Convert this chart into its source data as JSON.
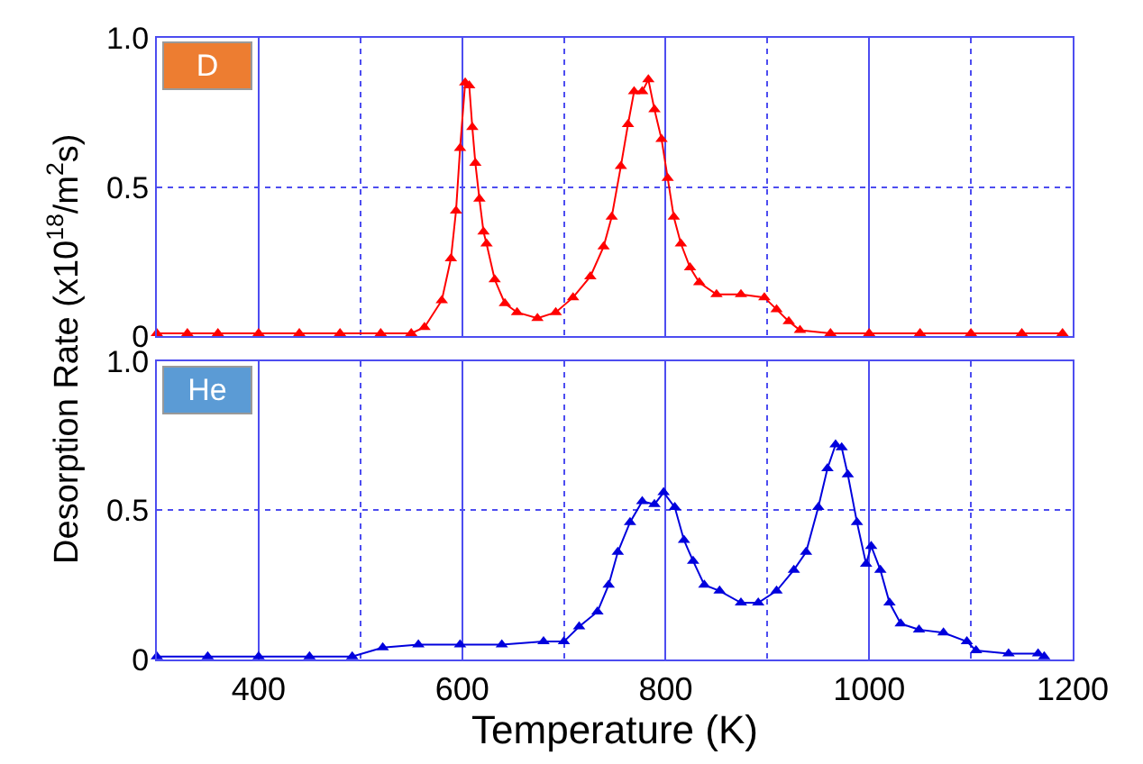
{
  "chart_data": [
    {
      "type": "line",
      "ylabel": "Desorption Rate (x10$^{18}$/m$^{2}$s)",
      "xlim": [
        300,
        1200
      ],
      "ylim": [
        0,
        1.0
      ],
      "yticks": [
        0,
        0.5,
        {
          "value": 1.0,
          "label": "1.0"
        }
      ],
      "xticks": [
        400,
        {
          "value": 500,
          "label": null
        },
        600,
        {
          "value": 700,
          "label": null
        },
        800,
        {
          "value": 900,
          "label": null
        },
        1000,
        {
          "value": 1100,
          "label": null
        },
        1200
      ],
      "tick_labels": "y",
      "grid": true,
      "marker": "triangle",
      "line_style": "solid",
      "series": [
        {
          "name": "D",
          "color": "#ff0000",
          "x": [
            300,
            330,
            360,
            400,
            440,
            480,
            520,
            550,
            563,
            580,
            589,
            594,
            598,
            603,
            607,
            610,
            613,
            617,
            621,
            624,
            632,
            642,
            654,
            674,
            692,
            709,
            726,
            739,
            747,
            756,
            763,
            769,
            777,
            783,
            789,
            796,
            802,
            808,
            815,
            824,
            833,
            850,
            874,
            897,
            909,
            921,
            932,
            962,
            1000,
            1050,
            1100,
            1150,
            1190
          ],
          "values": [
            0.01,
            0.01,
            0.01,
            0.01,
            0.01,
            0.01,
            0.01,
            0.01,
            0.03,
            0.12,
            0.26,
            0.42,
            0.63,
            0.85,
            0.84,
            0.7,
            0.58,
            0.46,
            0.35,
            0.31,
            0.19,
            0.11,
            0.08,
            0.06,
            0.08,
            0.13,
            0.2,
            0.3,
            0.4,
            0.57,
            0.71,
            0.82,
            0.82,
            0.86,
            0.76,
            0.66,
            0.53,
            0.4,
            0.31,
            0.23,
            0.18,
            0.14,
            0.14,
            0.13,
            0.09,
            0.05,
            0.02,
            0.01,
            0.01,
            0.01,
            0.01,
            0.01,
            0.01
          ]
        }
      ]
    },
    {
      "type": "line",
      "xlabel": "Temperature (K)",
      "xlim": [
        300,
        1200
      ],
      "ylim": [
        0,
        1.0
      ],
      "yticks": [
        0,
        0.5,
        {
          "value": 1.0,
          "label": "1.0"
        }
      ],
      "xticks": [
        400,
        {
          "value": 500,
          "label": null
        },
        600,
        {
          "value": 700,
          "label": null
        },
        800,
        {
          "value": 900,
          "label": null
        },
        1000,
        {
          "value": 1100,
          "label": null
        },
        1200
      ],
      "grid": true,
      "marker": "triangle",
      "line_style": "solid",
      "series": [
        {
          "name": "He",
          "color": "#0000dd",
          "x": [
            300,
            350,
            400,
            450,
            492,
            522,
            557,
            598,
            639,
            680,
            700,
            715,
            733,
            744,
            753,
            765,
            777,
            789,
            798,
            809,
            818,
            827,
            838,
            853,
            874,
            891,
            909,
            926,
            938,
            950,
            959,
            967,
            973,
            979,
            988,
            997,
            1002,
            1011,
            1020,
            1031,
            1049,
            1073,
            1096,
            1105,
            1137,
            1166,
            1172
          ],
          "values": [
            0.01,
            0.01,
            0.01,
            0.01,
            0.01,
            0.04,
            0.05,
            0.05,
            0.05,
            0.06,
            0.06,
            0.11,
            0.16,
            0.25,
            0.36,
            0.46,
            0.53,
            0.52,
            0.56,
            0.51,
            0.4,
            0.33,
            0.25,
            0.23,
            0.19,
            0.19,
            0.23,
            0.3,
            0.36,
            0.51,
            0.64,
            0.72,
            0.71,
            0.62,
            0.46,
            0.32,
            0.38,
            0.3,
            0.19,
            0.12,
            0.1,
            0.09,
            0.06,
            0.03,
            0.02,
            0.02,
            0.01
          ]
        }
      ]
    }
  ]
}
